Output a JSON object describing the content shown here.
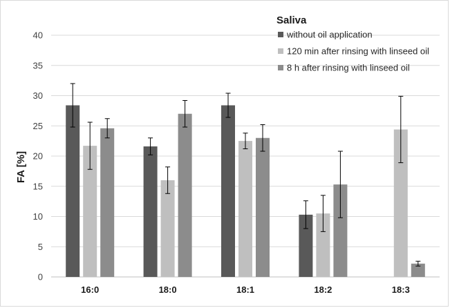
{
  "chart_data": {
    "type": "bar",
    "title": "",
    "xlabel": "",
    "ylabel": "FA [%]",
    "ylim": [
      0,
      40
    ],
    "yticks": [
      0,
      5,
      10,
      15,
      20,
      25,
      30,
      35,
      40
    ],
    "grid": true,
    "legend": {
      "title": "Saliva",
      "placement": "top-right"
    },
    "categories": [
      "16:0",
      "18:0",
      "18:1",
      "18:2",
      "18:3"
    ],
    "series": [
      {
        "name": "without oil application",
        "color": "#595959",
        "values": [
          28.4,
          21.6,
          28.4,
          10.3,
          null
        ],
        "error": [
          3.6,
          1.4,
          2.0,
          2.3,
          null
        ]
      },
      {
        "name": "120 min after rinsing with linseed oil",
        "color": "#bfbfbf",
        "values": [
          21.7,
          16.0,
          22.5,
          10.5,
          24.4
        ],
        "error": [
          3.9,
          2.2,
          1.3,
          3.0,
          5.5
        ]
      },
      {
        "name": "8 h after rinsing with linseed oil",
        "color": "#8c8c8c",
        "values": [
          24.6,
          27.0,
          23.0,
          15.3,
          2.2
        ],
        "error": [
          1.6,
          2.2,
          2.2,
          5.5,
          0.4
        ]
      }
    ]
  }
}
